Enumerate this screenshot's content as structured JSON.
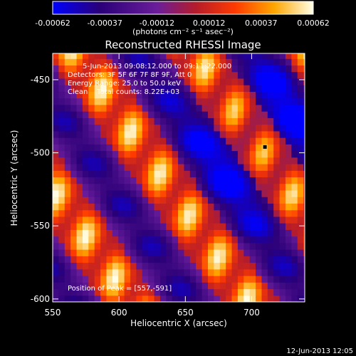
{
  "chart_data": {
    "type": "heatmap",
    "title": "Reconstructed RHESSI Image",
    "xlabel": "Heliocentric X (arcsec)",
    "ylabel": "Heliocentric Y (arcsec)",
    "xlim": [
      550,
      740
    ],
    "ylim": [
      -602,
      -432
    ],
    "x_ticks": [
      550,
      600,
      650,
      700
    ],
    "y_ticks": [
      -450,
      -500,
      -550,
      -600
    ],
    "colorbar": {
      "min": -0.00062,
      "max": 0.00062,
      "ticks": [
        "-0.00062",
        "-0.00037",
        "-0.00012",
        "0.00012",
        "0.00037",
        "0.00062"
      ],
      "unit_label": "(photons cm⁻² s⁻¹ asec⁻²)"
    },
    "annotations": [
      "5-Jun-2013 09:08:12.000 to 09:11:22.000",
      "Detectors: 3F 5F 6F 7F 8F 9F, Att 0",
      "Energy Range: 25.0 to 50.0 keV",
      "Clean    Total counts: 8.22E+03"
    ],
    "peak_label": "Position of Peak = [557,-591]",
    "marker": {
      "x": 710,
      "y": -496
    },
    "stripes": {
      "slope_y_per_x": -1.3,
      "spacing_arcsec": 116,
      "bright_intercept_y": -1318
    },
    "footer": "12-Jun-2013 12:05"
  }
}
